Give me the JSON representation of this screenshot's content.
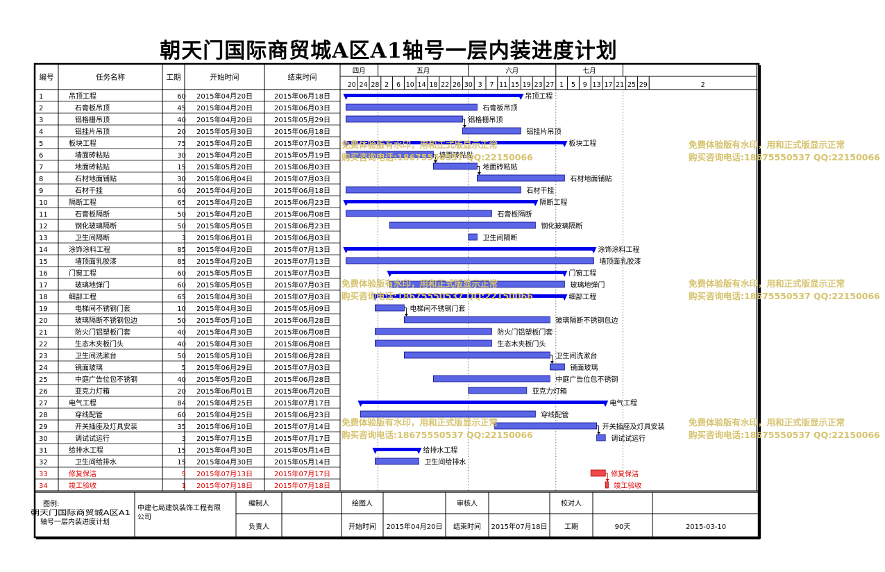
{
  "title": "朝天门国际商贸城A区A1轴号一层内装进度计划",
  "headers": {
    "id": "编号",
    "name": "任务名称",
    "duration": "工期",
    "start": "开始时间",
    "end": "结束时间"
  },
  "months": [
    {
      "label": "四月",
      "start": "2015-04-18",
      "end": "2015-05-01"
    },
    {
      "label": "五月",
      "start": "2015-05-01",
      "end": "2015-06-01"
    },
    {
      "label": "六月",
      "start": "2015-06-01",
      "end": "2015-07-01"
    },
    {
      "label": "七月",
      "start": "2015-07-01",
      "end": "2015-07-24"
    }
  ],
  "day_ticks": [
    {
      "label": "20",
      "date": "2015-04-20"
    },
    {
      "label": "24",
      "date": "2015-04-24"
    },
    {
      "label": "28",
      "date": "2015-04-28"
    },
    {
      "label": "2",
      "date": "2015-05-02"
    },
    {
      "label": "6",
      "date": "2015-05-06"
    },
    {
      "label": "10",
      "date": "2015-05-10"
    },
    {
      "label": "14",
      "date": "2015-05-14"
    },
    {
      "label": "18",
      "date": "2015-05-18"
    },
    {
      "label": "22",
      "date": "2015-05-22"
    },
    {
      "label": "26",
      "date": "2015-05-26"
    },
    {
      "label": "30",
      "date": "2015-05-30"
    },
    {
      "label": "3",
      "date": "2015-06-03"
    },
    {
      "label": "7",
      "date": "2015-06-07"
    },
    {
      "label": "11",
      "date": "2015-06-11"
    },
    {
      "label": "15",
      "date": "2015-06-15"
    },
    {
      "label": "19",
      "date": "2015-06-19"
    },
    {
      "label": "23",
      "date": "2015-06-23"
    },
    {
      "label": "27",
      "date": "2015-06-27"
    },
    {
      "label": "1",
      "date": "2015-07-01"
    },
    {
      "label": "5",
      "date": "2015-07-05"
    },
    {
      "label": "9",
      "date": "2015-07-09"
    },
    {
      "label": "13",
      "date": "2015-07-13"
    },
    {
      "label": "17",
      "date": "2015-07-17"
    },
    {
      "label": "21",
      "date": "2015-07-21"
    },
    {
      "label": "25",
      "date": "2015-07-25"
    },
    {
      "label": "29",
      "date": "2015-07-29"
    },
    {
      "label": "2",
      "date": "2015-08-02"
    }
  ],
  "watermark_lines": [
    "免费体验版有水印，用和正式版显示正常",
    "购买咨询电话:18675550537 QQ:22150066"
  ],
  "chart_data": {
    "type": "gantt",
    "title": "朝天门国际商贸城A区A1轴号一层内装进度计划",
    "x_range": [
      "2015-04-18",
      "2015-08-04"
    ],
    "tasks": [
      {
        "id": "1",
        "name": "吊顶工程",
        "duration": "60",
        "start": "2015-04-20",
        "end": "2015-06-18",
        "start_text": "2015年04月20日",
        "end_text": "2015年06月18日",
        "level": 0,
        "summary": true
      },
      {
        "id": "2",
        "name": "石膏板吊顶",
        "duration": "45",
        "start": "2015-04-20",
        "end": "2015-06-03",
        "start_text": "2015年04月20日",
        "end_text": "2015年06月03日",
        "level": 1
      },
      {
        "id": "3",
        "name": "铝格栅吊顶",
        "duration": "40",
        "start": "2015-04-20",
        "end": "2015-05-29",
        "start_text": "2015年04月20日",
        "end_text": "2015年05月29日",
        "level": 1
      },
      {
        "id": "4",
        "name": "铝挂片吊顶",
        "duration": "20",
        "start": "2015-05-30",
        "end": "2015-06-18",
        "start_text": "2015年05月30日",
        "end_text": "2015年06月18日",
        "level": 1
      },
      {
        "id": "5",
        "name": "板块工程",
        "duration": "75",
        "start": "2015-04-20",
        "end": "2015-07-03",
        "start_text": "2015年04月20日",
        "end_text": "2015年07月03日",
        "level": 0,
        "summary": true
      },
      {
        "id": "6",
        "name": "墙面砖粘贴",
        "duration": "30",
        "start": "2015-04-20",
        "end": "2015-05-19",
        "start_text": "2015年04月20日",
        "end_text": "2015年05月19日",
        "level": 1
      },
      {
        "id": "7",
        "name": "地面砖粘贴",
        "duration": "15",
        "start": "2015-05-20",
        "end": "2015-06-03",
        "start_text": "2015年05月20日",
        "end_text": "2015年06月03日",
        "level": 1
      },
      {
        "id": "8",
        "name": "石材地面铺贴",
        "duration": "30",
        "start": "2015-06-04",
        "end": "2015-07-03",
        "start_text": "2015年06月04日",
        "end_text": "2015年07月03日",
        "level": 1
      },
      {
        "id": "9",
        "name": "石材干挂",
        "duration": "60",
        "start": "2015-04-20",
        "end": "2015-06-18",
        "start_text": "2015年04月20日",
        "end_text": "2015年06月18日",
        "level": 1
      },
      {
        "id": "10",
        "name": "隔断工程",
        "duration": "65",
        "start": "2015-04-20",
        "end": "2015-06-23",
        "start_text": "2015年04月20日",
        "end_text": "2015年06月23日",
        "level": 0,
        "summary": true
      },
      {
        "id": "11",
        "name": "石膏板隔断",
        "duration": "50",
        "start": "2015-04-20",
        "end": "2015-06-08",
        "start_text": "2015年04月20日",
        "end_text": "2015年06月08日",
        "level": 1
      },
      {
        "id": "12",
        "name": "钢化玻璃隔断",
        "duration": "50",
        "start": "2015-05-05",
        "end": "2015-06-23",
        "start_text": "2015年05月05日",
        "end_text": "2015年06月23日",
        "level": 1
      },
      {
        "id": "13",
        "name": "卫生间隔断",
        "duration": "3",
        "start": "2015-06-01",
        "end": "2015-06-03",
        "start_text": "2015年06月01日",
        "end_text": "2015年06月03日",
        "level": 1
      },
      {
        "id": "14",
        "name": "涂饰涂料工程",
        "duration": "85",
        "start": "2015-04-20",
        "end": "2015-07-13",
        "start_text": "2015年04月20日",
        "end_text": "2015年07月13日",
        "level": 0,
        "summary": true
      },
      {
        "id": "15",
        "name": "墙顶面乳胶漆",
        "duration": "85",
        "start": "2015-04-20",
        "end": "2015-07-13",
        "start_text": "2015年04月20日",
        "end_text": "2015年07月13日",
        "level": 1
      },
      {
        "id": "16",
        "name": "门窗工程",
        "duration": "60",
        "start": "2015-05-05",
        "end": "2015-07-03",
        "start_text": "2015年05月05日",
        "end_text": "2015年07月03日",
        "level": 0,
        "summary": true
      },
      {
        "id": "17",
        "name": "玻璃地弹门",
        "duration": "60",
        "start": "2015-05-05",
        "end": "2015-07-03",
        "start_text": "2015年05月05日",
        "end_text": "2015年07月03日",
        "level": 1
      },
      {
        "id": "18",
        "name": "细部工程",
        "duration": "65",
        "start": "2015-04-30",
        "end": "2015-07-03",
        "start_text": "2015年04月30日",
        "end_text": "2015年07月03日",
        "level": 0,
        "summary": true
      },
      {
        "id": "19",
        "name": "电梯间不锈钢门套",
        "duration": "10",
        "start": "2015-04-30",
        "end": "2015-05-09",
        "start_text": "2015年04月30日",
        "end_text": "2015年05月09日",
        "level": 1
      },
      {
        "id": "20",
        "name": "玻璃隔断不锈钢包边",
        "duration": "50",
        "start": "2015-05-10",
        "end": "2015-06-28",
        "start_text": "2015年05月10日",
        "end_text": "2015年06月28日",
        "level": 1
      },
      {
        "id": "21",
        "name": "防火门铝塑板门套",
        "duration": "40",
        "start": "2015-04-30",
        "end": "2015-06-08",
        "start_text": "2015年04月30日",
        "end_text": "2015年06月08日",
        "level": 1
      },
      {
        "id": "22",
        "name": "生态木夹板门头",
        "duration": "40",
        "start": "2015-04-30",
        "end": "2015-06-08",
        "start_text": "2015年04月30日",
        "end_text": "2015年06月08日",
        "level": 1
      },
      {
        "id": "23",
        "name": "卫生间洗漱台",
        "duration": "50",
        "start": "2015-05-10",
        "end": "2015-06-28",
        "start_text": "2015年05月10日",
        "end_text": "2015年06月28日",
        "level": 1
      },
      {
        "id": "24",
        "name": "镜面玻璃",
        "duration": "5",
        "start": "2015-06-29",
        "end": "2015-07-03",
        "start_text": "2015年06月29日",
        "end_text": "2015年07月03日",
        "level": 1
      },
      {
        "id": "25",
        "name": "中庭广告位包不锈钢",
        "duration": "40",
        "start": "2015-05-20",
        "end": "2015-06-28",
        "start_text": "2015年05月20日",
        "end_text": "2015年06月28日",
        "level": 1
      },
      {
        "id": "26",
        "name": "亚克力灯箱",
        "duration": "20",
        "start": "2015-06-01",
        "end": "2015-06-20",
        "start_text": "2015年06月01日",
        "end_text": "2015年06月20日",
        "level": 1
      },
      {
        "id": "27",
        "name": "电气工程",
        "duration": "84",
        "start": "2015-04-25",
        "end": "2015-07-17",
        "start_text": "2015年04月25日",
        "end_text": "2015年07月17日",
        "level": 0,
        "summary": true
      },
      {
        "id": "28",
        "name": "穿线配管",
        "duration": "60",
        "start": "2015-04-25",
        "end": "2015-06-23",
        "start_text": "2015年04月25日",
        "end_text": "2015年06月23日",
        "level": 1
      },
      {
        "id": "29",
        "name": "开关插座及灯具安装",
        "duration": "35",
        "start": "2015-06-10",
        "end": "2015-07-14",
        "start_text": "2015年06月10日",
        "end_text": "2015年07月14日",
        "level": 1
      },
      {
        "id": "30",
        "name": "调试试运行",
        "duration": "3",
        "start": "2015-07-15",
        "end": "2015-07-17",
        "start_text": "2015年07月15日",
        "end_text": "2015年07月17日",
        "level": 1
      },
      {
        "id": "31",
        "name": "给排水工程",
        "duration": "15",
        "start": "2015-04-30",
        "end": "2015-05-14",
        "start_text": "2015年04月30日",
        "end_text": "2015年05月14日",
        "level": 0,
        "summary": true
      },
      {
        "id": "32",
        "name": "卫生间给排水",
        "duration": "15",
        "start": "2015-04-30",
        "end": "2015-05-14",
        "start_text": "2015年04月30日",
        "end_text": "2015年05月14日",
        "level": 1
      },
      {
        "id": "33",
        "name": "修复保洁",
        "duration": "5",
        "start": "2015-07-13",
        "end": "2015-07-17",
        "start_text": "2015年07月13日",
        "end_text": "2015年07月17日",
        "level": 0,
        "critical": true
      },
      {
        "id": "34",
        "name": "竣工验收",
        "duration": "1",
        "start": "2015-07-18",
        "end": "2015-07-18",
        "start_text": "2015年07月18日",
        "end_text": "2015年07月18日",
        "level": 0,
        "critical": true
      }
    ],
    "links": [
      [
        3,
        4
      ],
      [
        6,
        7
      ],
      [
        7,
        8
      ],
      [
        19,
        20
      ],
      [
        23,
        24
      ],
      [
        29,
        30
      ],
      [
        33,
        34
      ]
    ],
    "colors": {
      "bar_fill": "#5a66e6",
      "bar_stroke": "#10108a",
      "summary": "#0000ee",
      "critical_fill": "#ee4a4a",
      "critical_stroke": "#b00000",
      "critical_text": "#e00000"
    }
  },
  "footer": {
    "legend_label": "图例:",
    "legend_text": "朝天门国际商贸城A区A1轴号一层内装进度计划",
    "company": "中建七局建筑装饰工程有限公司",
    "compiler_label": "编制人",
    "drafter_label": "绘图人",
    "reviewer_label": "审核人",
    "checker_label": "校对人",
    "responsible_label": "负责人",
    "start_label": "开始时间",
    "start_value": "2015年04月20日",
    "end_label": "结束时间",
    "end_value": "2015年07月18日",
    "duration_label": "工期",
    "duration_value": "90天",
    "date": "2015-03-10"
  }
}
